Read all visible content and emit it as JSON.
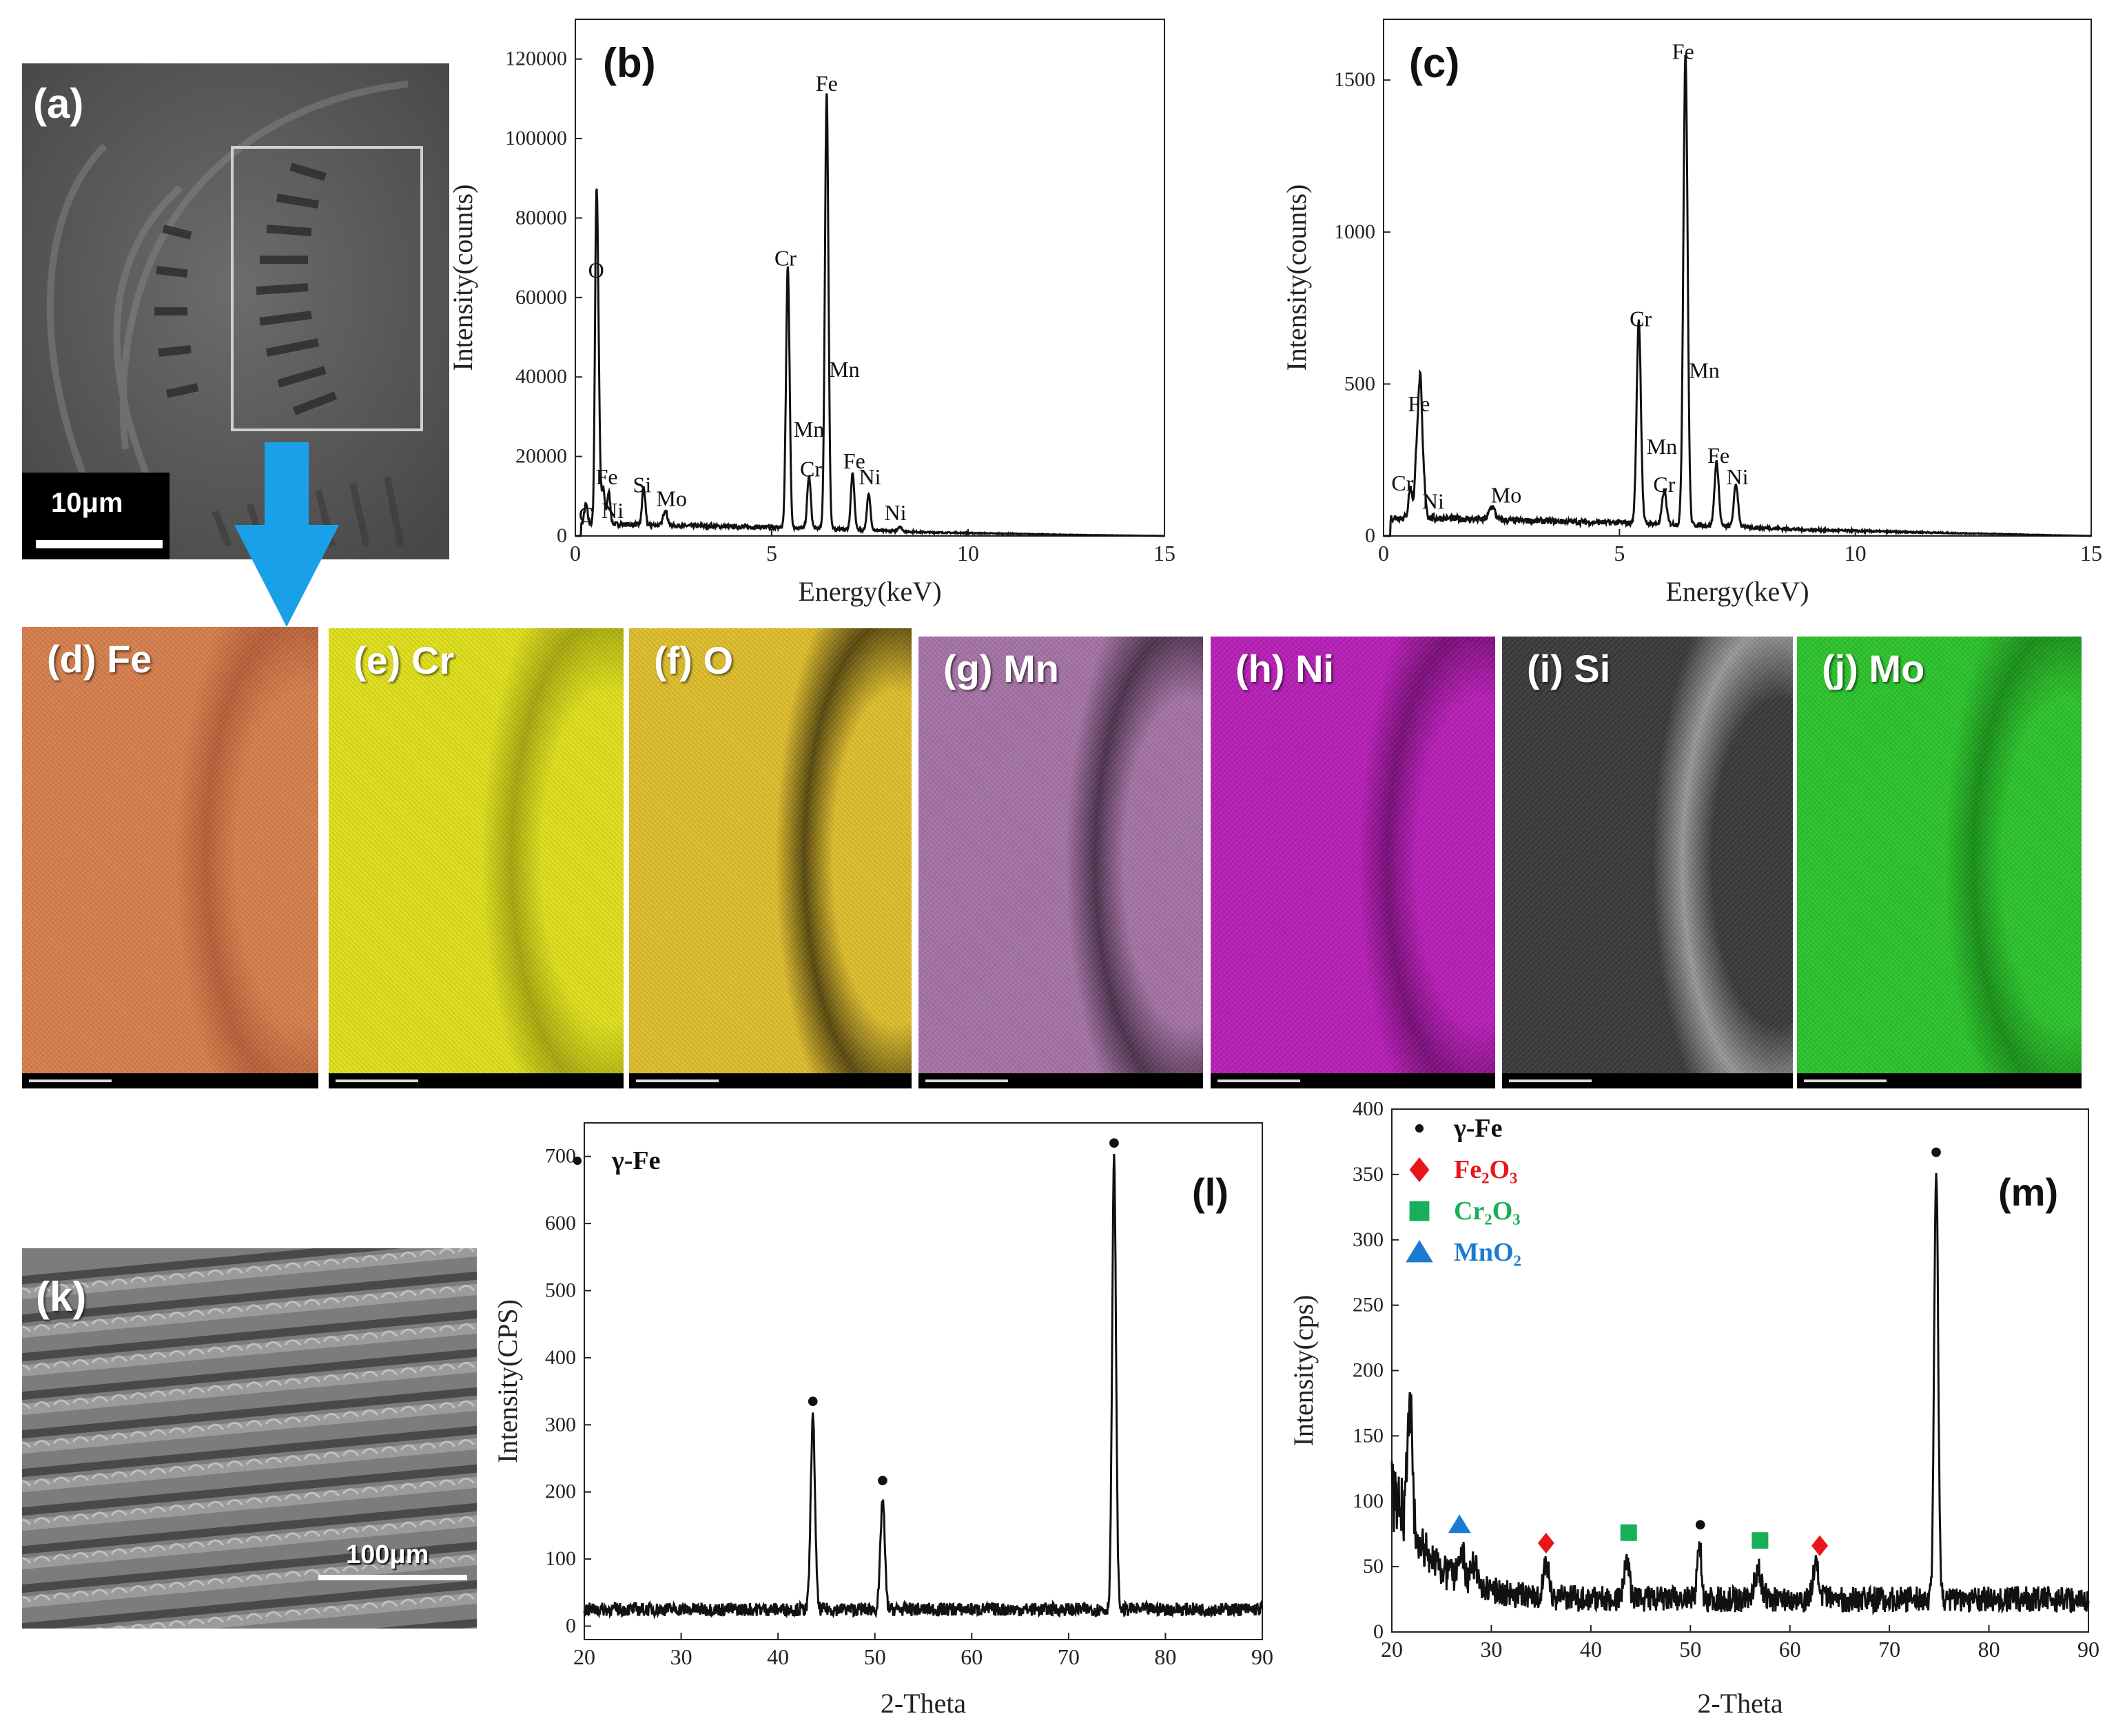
{
  "panels": {
    "a": {
      "label": "(a)",
      "scale": "10μm"
    },
    "k": {
      "label": "(k)",
      "scale": "100μm"
    }
  },
  "maps": [
    {
      "label": "(d) Fe",
      "color": "#d7804e",
      "dark": "#b8603a"
    },
    {
      "label": "(e) Cr",
      "color": "#e0e01e",
      "dark": "#a8a810"
    },
    {
      "label": "(f) O",
      "color": "#dfbe2e",
      "dark": "#5a4a10"
    },
    {
      "label": "(g) Mn",
      "color": "#a674a6",
      "dark": "#4e344e"
    },
    {
      "label": "(h) Ni",
      "color": "#b820b8",
      "dark": "#7a107a"
    },
    {
      "label": "(i) Si",
      "color": "#3c3c3c",
      "dark": "#9a9a9a"
    },
    {
      "label": "(j) Mo",
      "color": "#2ec42e",
      "dark": "#1a901a"
    }
  ],
  "chart_data": [
    {
      "id": "b",
      "panel_label": "(b)",
      "type": "line",
      "xlabel": "Energy(keV)",
      "ylabel": "Intensity(counts)",
      "xlim": [
        0,
        15
      ],
      "ylim": [
        0,
        130000
      ],
      "xticks": [
        0,
        5,
        10,
        15
      ],
      "yticks": [
        0,
        20000,
        40000,
        60000,
        80000,
        100000,
        120000
      ],
      "peaks": [
        {
          "x": 0.27,
          "y": 5000,
          "w": 0.04
        },
        {
          "x": 0.53,
          "y": 63000,
          "w": 0.035
        },
        {
          "x": 0.58,
          "y": 40000,
          "w": 0.04
        },
        {
          "x": 0.71,
          "y": 9000,
          "w": 0.04
        },
        {
          "x": 0.85,
          "y": 8000,
          "w": 0.04
        },
        {
          "x": 1.74,
          "y": 9500,
          "w": 0.04
        },
        {
          "x": 2.29,
          "y": 4000,
          "w": 0.05
        },
        {
          "x": 5.41,
          "y": 66000,
          "w": 0.045
        },
        {
          "x": 5.95,
          "y": 13000,
          "w": 0.045
        },
        {
          "x": 6.4,
          "y": 110000,
          "w": 0.045
        },
        {
          "x": 7.06,
          "y": 14000,
          "w": 0.045
        },
        {
          "x": 7.47,
          "y": 9000,
          "w": 0.045
        },
        {
          "x": 8.26,
          "y": 1200,
          "w": 0.05
        }
      ],
      "background": [
        [
          0.9,
          3000
        ],
        [
          3,
          2500
        ],
        [
          6,
          2000
        ],
        [
          9,
          900
        ],
        [
          12.5,
          300
        ],
        [
          15,
          0
        ]
      ],
      "annotations": [
        {
          "text": "O",
          "x": 0.53,
          "y": 65000
        },
        {
          "text": "C",
          "x": 0.27,
          "y": 3500
        },
        {
          "text": "Fe",
          "x": 0.8,
          "y": 13000
        },
        {
          "text": "Ni",
          "x": 0.95,
          "y": 4500
        },
        {
          "text": "Si",
          "x": 1.7,
          "y": 11000
        },
        {
          "text": "Mo",
          "x": 2.45,
          "y": 7500
        },
        {
          "text": "Cr",
          "x": 5.35,
          "y": 68000
        },
        {
          "text": "Mn",
          "x": 5.95,
          "y": 25000
        },
        {
          "text": "Cr",
          "x": 6.0,
          "y": 15000
        },
        {
          "text": "Fe",
          "x": 6.4,
          "y": 112000
        },
        {
          "text": "Mn",
          "x": 6.85,
          "y": 40000
        },
        {
          "text": "Fe",
          "x": 7.1,
          "y": 17000
        },
        {
          "text": "Ni",
          "x": 7.5,
          "y": 13000
        },
        {
          "text": "Ni",
          "x": 8.15,
          "y": 4000
        }
      ]
    },
    {
      "id": "c",
      "panel_label": "(c)",
      "type": "line",
      "xlabel": "Energy(keV)",
      "ylabel": "Intensity(counts)",
      "xlim": [
        0,
        15
      ],
      "ylim": [
        0,
        1700
      ],
      "xticks": [
        0,
        5,
        10,
        15
      ],
      "yticks": [
        0,
        500,
        1000,
        1500
      ],
      "peaks": [
        {
          "x": 0.57,
          "y": 100,
          "w": 0.04
        },
        {
          "x": 0.71,
          "y": 240,
          "w": 0.04
        },
        {
          "x": 0.78,
          "y": 390,
          "w": 0.035
        },
        {
          "x": 0.85,
          "y": 120,
          "w": 0.04
        },
        {
          "x": 2.3,
          "y": 45,
          "w": 0.06
        },
        {
          "x": 5.41,
          "y": 670,
          "w": 0.045
        },
        {
          "x": 5.95,
          "y": 110,
          "w": 0.045
        },
        {
          "x": 6.4,
          "y": 1550,
          "w": 0.045
        },
        {
          "x": 7.06,
          "y": 210,
          "w": 0.045
        },
        {
          "x": 7.47,
          "y": 140,
          "w": 0.045
        }
      ],
      "background": [
        [
          0.9,
          60
        ],
        [
          3,
          50
        ],
        [
          6,
          40
        ],
        [
          9,
          20
        ],
        [
          12.5,
          8
        ],
        [
          15,
          0
        ]
      ],
      "annotations": [
        {
          "text": "Fe",
          "x": 0.75,
          "y": 410
        },
        {
          "text": "Cr",
          "x": 0.4,
          "y": 150
        },
        {
          "text": "Ni",
          "x": 1.05,
          "y": 90
        },
        {
          "text": "Mo",
          "x": 2.6,
          "y": 110
        },
        {
          "text": "Cr",
          "x": 5.45,
          "y": 690
        },
        {
          "text": "Mn",
          "x": 5.9,
          "y": 270
        },
        {
          "text": "Cr",
          "x": 5.95,
          "y": 145
        },
        {
          "text": "Fe",
          "x": 6.35,
          "y": 1570
        },
        {
          "text": "Mn",
          "x": 6.8,
          "y": 520
        },
        {
          "text": "Fe",
          "x": 7.1,
          "y": 240
        },
        {
          "text": "Ni",
          "x": 7.5,
          "y": 170
        }
      ]
    },
    {
      "id": "l",
      "panel_label": "(l)",
      "type": "line",
      "xlabel": "2-Theta",
      "ylabel": "Intensity(CPS)",
      "xlim": [
        20,
        90
      ],
      "ylim": [
        -20,
        750
      ],
      "xticks": [
        20,
        30,
        40,
        50,
        60,
        70,
        80,
        90
      ],
      "yticks": [
        0,
        100,
        200,
        300,
        400,
        500,
        600,
        700
      ],
      "baseline": 25,
      "peaks": [
        {
          "x": 43.6,
          "y": 285,
          "w": 0.22
        },
        {
          "x": 50.8,
          "y": 165,
          "w": 0.22
        },
        {
          "x": 74.7,
          "y": 670,
          "w": 0.2
        }
      ],
      "markers": [
        {
          "x": 43.6,
          "y": 335,
          "shape": "dot"
        },
        {
          "x": 50.8,
          "y": 217,
          "shape": "dot"
        },
        {
          "x": 74.7,
          "y": 720,
          "shape": "dot"
        }
      ],
      "legend": [
        {
          "label": "γ-Fe",
          "shape": "dot",
          "color": "#111111"
        }
      ]
    },
    {
      "id": "m",
      "panel_label": "(m)",
      "type": "line",
      "xlabel": "2-Theta",
      "ylabel": "Intensity(cps)",
      "xlim": [
        20,
        90
      ],
      "ylim": [
        0,
        400
      ],
      "xticks": [
        20,
        30,
        40,
        50,
        60,
        70,
        80,
        90
      ],
      "yticks": [
        0,
        50,
        100,
        150,
        200,
        250,
        300,
        350,
        400
      ],
      "baseline": 25,
      "bg_decay": {
        "amp": 85,
        "tau": 4
      },
      "peaks": [
        {
          "x": 21.8,
          "y": 95,
          "w": 0.25
        },
        {
          "x": 27.0,
          "y": 20,
          "w": 0.3
        },
        {
          "x": 28.2,
          "y": 18,
          "w": 0.3
        },
        {
          "x": 35.5,
          "y": 25,
          "w": 0.3
        },
        {
          "x": 43.6,
          "y": 32,
          "w": 0.25
        },
        {
          "x": 50.9,
          "y": 45,
          "w": 0.2
        },
        {
          "x": 56.8,
          "y": 22,
          "w": 0.35
        },
        {
          "x": 62.6,
          "y": 25,
          "w": 0.3
        },
        {
          "x": 74.7,
          "y": 330,
          "w": 0.2
        }
      ],
      "markers": [
        {
          "x": 26.8,
          "y": 82,
          "shape": "triangle"
        },
        {
          "x": 35.5,
          "y": 68,
          "shape": "diamond"
        },
        {
          "x": 43.8,
          "y": 76,
          "shape": "square"
        },
        {
          "x": 51.0,
          "y": 82,
          "shape": "dot"
        },
        {
          "x": 57.0,
          "y": 70,
          "shape": "square"
        },
        {
          "x": 63.0,
          "y": 66,
          "shape": "diamond"
        },
        {
          "x": 74.7,
          "y": 367,
          "shape": "dot"
        }
      ],
      "legend": [
        {
          "label": "γ-Fe",
          "shape": "dot",
          "color": "#111111"
        },
        {
          "label": "Fe₂O₃",
          "shape": "diamond",
          "color": "#e8161b"
        },
        {
          "label": "Cr₂O₃",
          "shape": "square",
          "color": "#16b05a"
        },
        {
          "label": "MnO₂",
          "shape": "triangle",
          "color": "#1c7bd1"
        }
      ]
    }
  ],
  "colors": {
    "arrow": "#1aa0e8",
    "dot": "#111111",
    "diamond": "#e8161b",
    "square": "#16b05a",
    "triangle": "#1c7bd1"
  }
}
